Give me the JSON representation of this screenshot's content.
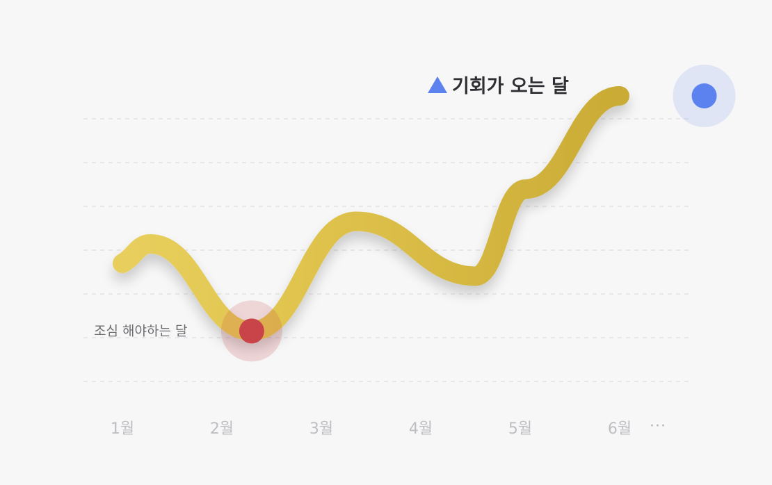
{
  "chart_data": {
    "type": "line",
    "categories": [
      "1월",
      "2월",
      "3월",
      "4월",
      "5월",
      "6월"
    ],
    "continuation_marker": "···",
    "values": [
      4.6,
      1.0,
      5.2,
      3.1,
      5.5,
      10.0
    ],
    "ylim": [
      0,
      10
    ],
    "grid": true,
    "annotations": {
      "high": {
        "text": "기회가 오는 달",
        "x": 5.85,
        "y": 10.0,
        "color": "#5b82ee",
        "marker": "triangle-up-icon"
      },
      "low": {
        "text": "조심 해야하는 달",
        "x": 1.3,
        "y": 1.0,
        "color": "#c94449"
      }
    },
    "line_color": "#d4b53f",
    "title": "",
    "xlabel": "",
    "ylabel": ""
  }
}
